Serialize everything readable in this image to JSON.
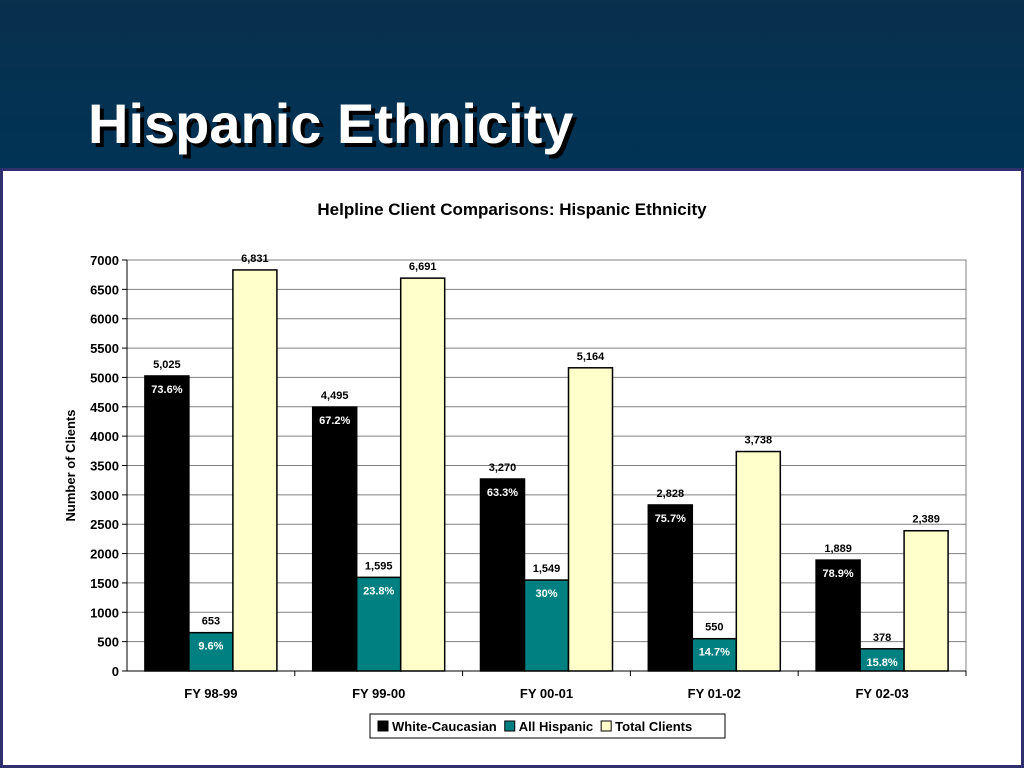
{
  "slide": {
    "title": "Hispanic Ethnicity"
  },
  "colors": {
    "header_bg": "#003355",
    "panel_border": "#2f2f6e",
    "white_caucasian": "#000000",
    "all_hispanic": "#008080",
    "total_clients": "#ffffcc"
  },
  "chart_data": {
    "type": "bar",
    "title": "Helpline Client Comparisons: Hispanic Ethnicity",
    "xlabel": "",
    "ylabel": "Number of Clients",
    "ylim": [
      0,
      7000
    ],
    "yticks": [
      0,
      500,
      1000,
      1500,
      2000,
      2500,
      3000,
      3500,
      4000,
      4500,
      5000,
      5500,
      6000,
      6500,
      7000
    ],
    "grid": true,
    "legend_position": "bottom",
    "categories": [
      "FY 98-99",
      "FY 99-00",
      "FY 00-01",
      "FY 01-02",
      "FY 02-03"
    ],
    "series": [
      {
        "name": "White-Caucasian",
        "color": "#000000",
        "values": [
          5025,
          4495,
          3270,
          2828,
          1889
        ],
        "value_labels": [
          "5,025",
          "4,495",
          "3,270",
          "2,828",
          "1,889"
        ],
        "percent_labels": [
          "73.6%",
          "67.2%",
          "63.3%",
          "75.7%",
          "78.9%"
        ]
      },
      {
        "name": "All Hispanic",
        "color": "#008080",
        "values": [
          653,
          1595,
          1549,
          550,
          378
        ],
        "value_labels": [
          "653",
          "1,595",
          "1,549",
          "550",
          "378"
        ],
        "percent_labels": [
          "9.6%",
          "23.8%",
          "30%",
          "14.7%",
          "15.8%"
        ]
      },
      {
        "name": "Total Clients",
        "color": "#ffffcc",
        "values": [
          6831,
          6691,
          5164,
          3738,
          2389
        ],
        "value_labels": [
          "6,831",
          "6,691",
          "5,164",
          "3,738",
          "2,389"
        ],
        "percent_labels": [
          "",
          "",
          "",
          "",
          ""
        ]
      }
    ]
  }
}
